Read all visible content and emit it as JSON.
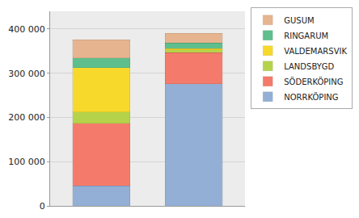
{
  "chart_data": {
    "type": "bar",
    "stacked": true,
    "grid": true,
    "legend": "top right",
    "tick_labels": "y",
    "categories": [
      null,
      null
    ],
    "ylim": [
      0,
      440000
    ],
    "yticks": [
      0,
      {
        "value": 100000,
        "label": "100 000"
      },
      {
        "value": 200000,
        "label": "200 000"
      },
      {
        "value": 300000,
        "label": "300 000"
      },
      {
        "value": 400000,
        "label": "400 000"
      }
    ],
    "series": [
      {
        "name": "NORRKÖPING",
        "color": "#93afd6",
        "values": [
          45000,
          276000
        ]
      },
      {
        "name": "SÖDERKÖPING",
        "color": "#f47b6b",
        "values": [
          142000,
          70000
        ]
      },
      {
        "name": "LANDSBYGD",
        "color": "#b5d34a",
        "values": [
          25000,
          7000
        ]
      },
      {
        "name": "VALDEMARSVIK",
        "color": "#f7d92c",
        "values": [
          101000,
          3000
        ]
      },
      {
        "name": "RINGARUM",
        "color": "#5ebf8c",
        "values": [
          22000,
          12000
        ]
      },
      {
        "name": "GUSUM",
        "color": "#e6b48e",
        "values": [
          41000,
          22000
        ]
      }
    ]
  }
}
